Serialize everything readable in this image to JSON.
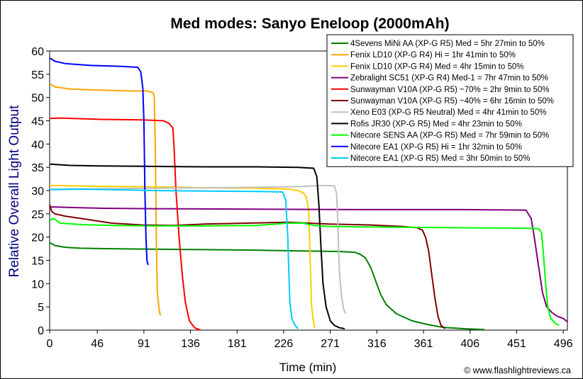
{
  "chart_data": {
    "type": "line",
    "title": "Med modes: Sanyo Eneloop (2000mAh)",
    "xlabel": "Time (min)",
    "ylabel": "Relative Overall Light Output",
    "xlim": [
      0,
      500
    ],
    "ylim": [
      0,
      60
    ],
    "x_ticks": [
      0,
      46,
      91,
      136,
      181,
      226,
      271,
      316,
      361,
      406,
      451,
      496
    ],
    "y_ticks": [
      0,
      5,
      10,
      15,
      20,
      25,
      30,
      35,
      40,
      45,
      50,
      55,
      60
    ],
    "grid": false,
    "legend_position": "top-right",
    "credit": "© www.flashlightreviews.ca",
    "series": [
      {
        "name": "4Sevens MiNi AA (XP-G R5) Med = 5hr 27min to 50%",
        "color": "#008000",
        "points": [
          [
            0,
            18.8
          ],
          [
            5,
            18.2
          ],
          [
            15,
            17.8
          ],
          [
            30,
            17.6
          ],
          [
            60,
            17.5
          ],
          [
            100,
            17.4
          ],
          [
            150,
            17.3
          ],
          [
            200,
            17.2
          ],
          [
            250,
            17.0
          ],
          [
            280,
            16.9
          ],
          [
            295,
            16.7
          ],
          [
            300,
            16.3
          ],
          [
            305,
            15.5
          ],
          [
            310,
            13.5
          ],
          [
            315,
            10.5
          ],
          [
            320,
            7.5
          ],
          [
            325,
            5.5
          ],
          [
            335,
            3.5
          ],
          [
            350,
            2.0
          ],
          [
            365,
            1.2
          ],
          [
            380,
            0.6
          ],
          [
            400,
            0.3
          ],
          [
            420,
            0.1
          ]
        ]
      },
      {
        "name": "Fenix LD10 (XP-G R4) Hi = 1hr 41min to 50%",
        "color": "#FFA500",
        "points": [
          [
            0,
            53
          ],
          [
            5,
            52.3
          ],
          [
            20,
            51.8
          ],
          [
            50,
            51.6
          ],
          [
            80,
            51.4
          ],
          [
            95,
            51.4
          ],
          [
            100,
            51.0
          ],
          [
            101,
            50
          ],
          [
            102,
            40
          ],
          [
            103,
            20
          ],
          [
            104,
            8
          ],
          [
            106,
            4
          ],
          [
            107,
            3.2
          ]
        ]
      },
      {
        "name": "Fenix LD10 (XP-G R4) Med = 4hr 15min to 50%",
        "color": "#FFCC00",
        "points": [
          [
            0,
            31.1
          ],
          [
            50,
            30.9
          ],
          [
            100,
            30.8
          ],
          [
            150,
            30.6
          ],
          [
            200,
            30.5
          ],
          [
            230,
            30.3
          ],
          [
            240,
            30.0
          ],
          [
            245,
            29.5
          ],
          [
            248,
            28.5
          ],
          [
            250,
            26
          ],
          [
            251,
            20
          ],
          [
            252,
            12
          ],
          [
            253,
            5
          ],
          [
            255,
            1.5
          ],
          [
            256,
            0.5
          ]
        ]
      },
      {
        "name": "Zebralight SC51 (XP-G R4) Med-1 = 7hr 47min to 50%",
        "color": "#800080",
        "points": [
          [
            0,
            26.5
          ],
          [
            50,
            26.2
          ],
          [
            100,
            26.1
          ],
          [
            200,
            26.0
          ],
          [
            300,
            25.9
          ],
          [
            400,
            25.9
          ],
          [
            460,
            25.8
          ],
          [
            465,
            24
          ],
          [
            468,
            20
          ],
          [
            472,
            14
          ],
          [
            476,
            8
          ],
          [
            480,
            5
          ],
          [
            485,
            3.8
          ],
          [
            490,
            3
          ],
          [
            496,
            2.5
          ],
          [
            500,
            1.8
          ]
        ]
      },
      {
        "name": "Sunwayman V10A (XP-G R5) ~70% = 2hr 9min to 50%",
        "color": "#FF0000",
        "points": [
          [
            0,
            45.5
          ],
          [
            10,
            45.6
          ],
          [
            50,
            45.3
          ],
          [
            90,
            45.2
          ],
          [
            110,
            45.0
          ],
          [
            115,
            44.5
          ],
          [
            119,
            43.5
          ],
          [
            120,
            40
          ],
          [
            122,
            30
          ],
          [
            125,
            20
          ],
          [
            128,
            12
          ],
          [
            131,
            6
          ],
          [
            135,
            2
          ],
          [
            140,
            0.5
          ],
          [
            146,
            0
          ]
        ]
      },
      {
        "name": "Sunwayman V10A (XP-G R5) ~40% = 6hr 16min to 50%",
        "color": "#800000",
        "points": [
          [
            0,
            27
          ],
          [
            2,
            25.5
          ],
          [
            5,
            25
          ],
          [
            15,
            24.5
          ],
          [
            30,
            24
          ],
          [
            60,
            23
          ],
          [
            90,
            22.6
          ],
          [
            120,
            22.5
          ],
          [
            150,
            22.8
          ],
          [
            190,
            23
          ],
          [
            230,
            23.2
          ],
          [
            270,
            22.8
          ],
          [
            310,
            22.6
          ],
          [
            340,
            22.3
          ],
          [
            355,
            22.0
          ],
          [
            360,
            21.5
          ],
          [
            363,
            20
          ],
          [
            366,
            17
          ],
          [
            369,
            12
          ],
          [
            372,
            7
          ],
          [
            375,
            3
          ],
          [
            378,
            1
          ],
          [
            382,
            0.3
          ]
        ]
      },
      {
        "name": "Xeno E03 (XP-G R5 Neutral) Med = 4hr 41min to 50%",
        "color": "#C0C0C0",
        "points": [
          [
            0,
            30.3
          ],
          [
            50,
            30.4
          ],
          [
            100,
            30.5
          ],
          [
            150,
            30.6
          ],
          [
            200,
            30.7
          ],
          [
            230,
            30.8
          ],
          [
            245,
            30.9
          ],
          [
            255,
            31.0
          ],
          [
            265,
            31.1
          ],
          [
            275,
            31.0
          ],
          [
            277,
            29.5
          ],
          [
            278,
            25
          ],
          [
            279,
            18
          ],
          [
            280,
            12
          ],
          [
            282,
            7
          ],
          [
            284,
            4.5
          ],
          [
            286,
            3.5
          ]
        ]
      },
      {
        "name": "Rofis JR30 (XP-G R5) Med = 4hr 23min to 50%",
        "color": "#000000",
        "points": [
          [
            0,
            35.7
          ],
          [
            20,
            35.4
          ],
          [
            50,
            35.3
          ],
          [
            100,
            35.2
          ],
          [
            150,
            35.1
          ],
          [
            200,
            35.1
          ],
          [
            240,
            35.0
          ],
          [
            255,
            34.8
          ],
          [
            258,
            33
          ],
          [
            260,
            27
          ],
          [
            262,
            18
          ],
          [
            264,
            10
          ],
          [
            267,
            5
          ],
          [
            271,
            2
          ],
          [
            275,
            1
          ],
          [
            280,
            0.5
          ],
          [
            285,
            0.3
          ]
        ]
      },
      {
        "name": "Nitecore SENS AA (XP-G R5) Med = 7hr 59min to 50%",
        "color": "#00FF00",
        "points": [
          [
            0,
            23.5
          ],
          [
            3,
            24
          ],
          [
            5,
            23.8
          ],
          [
            10,
            23
          ],
          [
            30,
            22.7
          ],
          [
            60,
            22.5
          ],
          [
            100,
            22.4
          ],
          [
            150,
            22.4
          ],
          [
            200,
            22.5
          ],
          [
            230,
            23.0
          ],
          [
            245,
            23.0
          ],
          [
            255,
            22.5
          ],
          [
            270,
            22.3
          ],
          [
            300,
            22.2
          ],
          [
            350,
            22.1
          ],
          [
            400,
            22.0
          ],
          [
            460,
            21.9
          ],
          [
            472,
            21.8
          ],
          [
            475,
            21.0
          ],
          [
            477,
            16
          ],
          [
            479,
            10
          ],
          [
            481,
            5
          ],
          [
            484,
            2.5
          ],
          [
            488,
            1.5
          ],
          [
            492,
            1
          ]
        ]
      },
      {
        "name": "Nitecore EA1 (XP-G R5) Hi = 1hr 32min to 50%",
        "color": "#0000FF",
        "points": [
          [
            0,
            58.5
          ],
          [
            5,
            57.8
          ],
          [
            15,
            57.3
          ],
          [
            40,
            56.9
          ],
          [
            70,
            56.7
          ],
          [
            85,
            56.5
          ],
          [
            88,
            55.5
          ],
          [
            90,
            52
          ],
          [
            91,
            45
          ],
          [
            92,
            30
          ],
          [
            93,
            20
          ],
          [
            94,
            15
          ],
          [
            95,
            14
          ]
        ]
      },
      {
        "name": "Nitecore EA1 (XP-G R5) Med = 3hr 50min to 50%",
        "color": "#00CCFF",
        "points": [
          [
            0,
            30.2
          ],
          [
            30,
            30.3
          ],
          [
            60,
            30.2
          ],
          [
            100,
            30.0
          ],
          [
            150,
            29.9
          ],
          [
            200,
            29.8
          ],
          [
            225,
            29.7
          ],
          [
            228,
            28
          ],
          [
            230,
            20
          ],
          [
            231,
            12
          ],
          [
            232,
            6
          ],
          [
            234,
            2.5
          ],
          [
            237,
            1
          ],
          [
            240,
            0.3
          ]
        ]
      }
    ]
  }
}
